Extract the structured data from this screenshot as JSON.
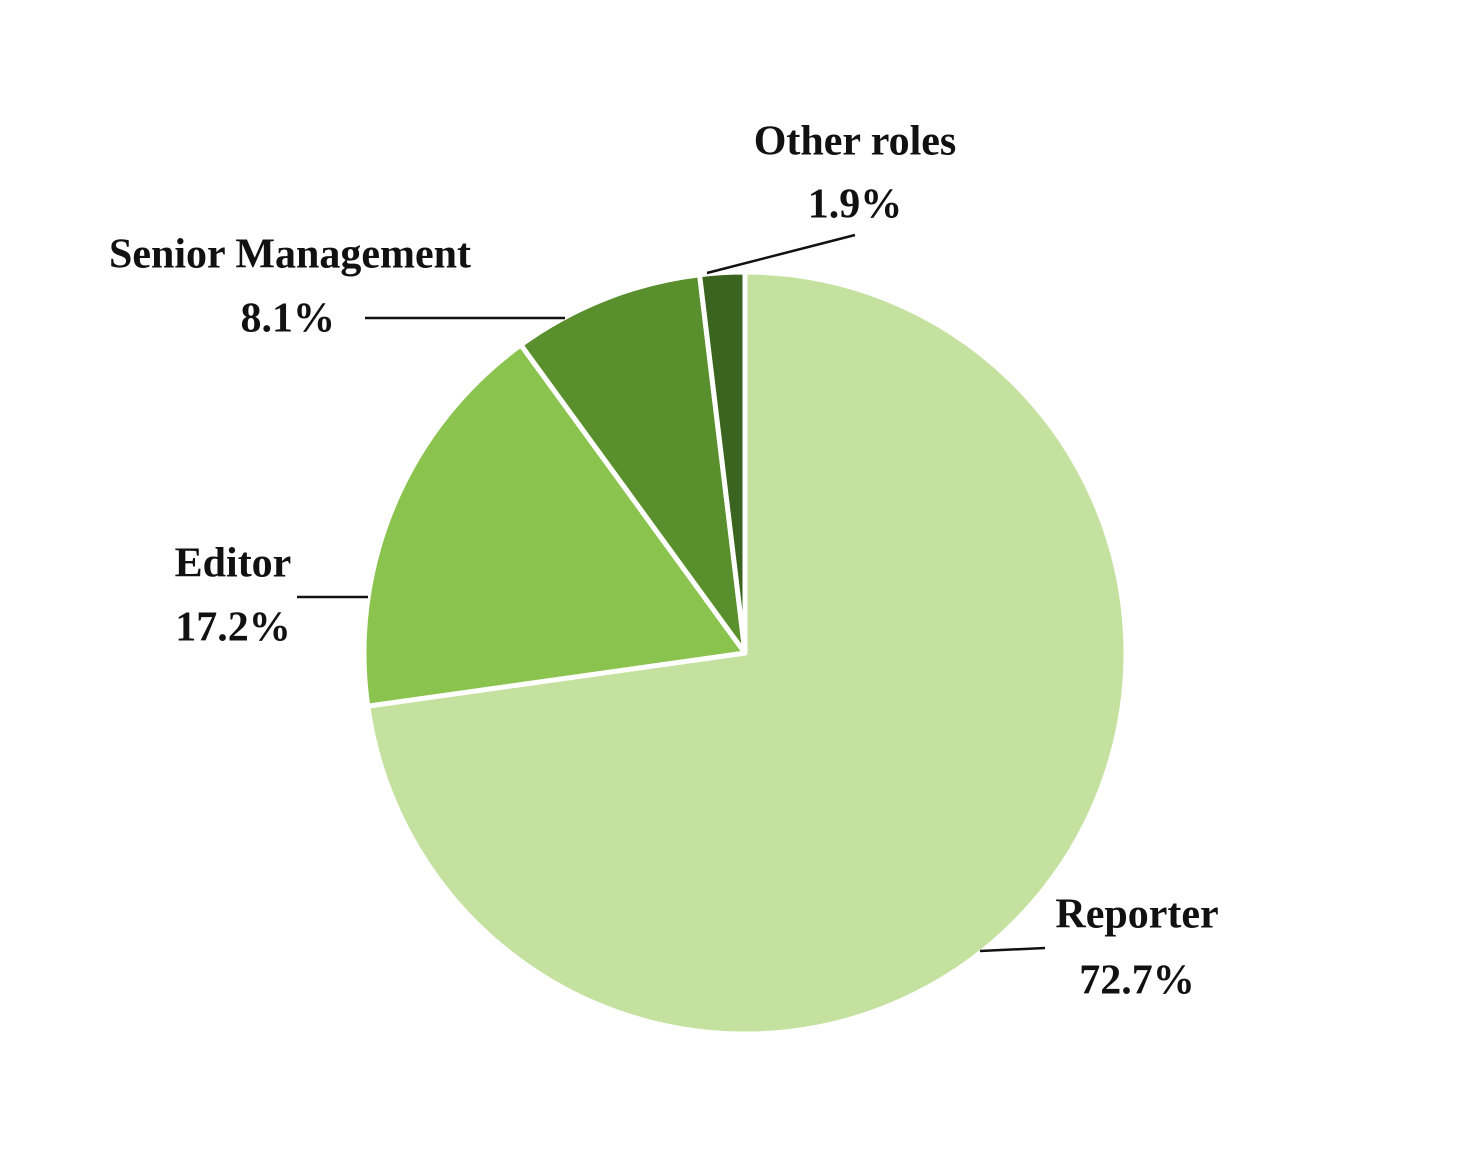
{
  "chart_data": {
    "type": "pie",
    "categories": [
      "Reporter",
      "Editor",
      "Senior Management",
      "Other roles"
    ],
    "values": [
      72.7,
      17.2,
      8.1,
      1.9
    ],
    "value_labels": [
      "72.7%",
      "17.2%",
      "8.1%",
      "1.9%"
    ],
    "colors": [
      "#c5e1a0",
      "#8bc34f",
      "#5a8f2d",
      "#3b6420"
    ]
  }
}
